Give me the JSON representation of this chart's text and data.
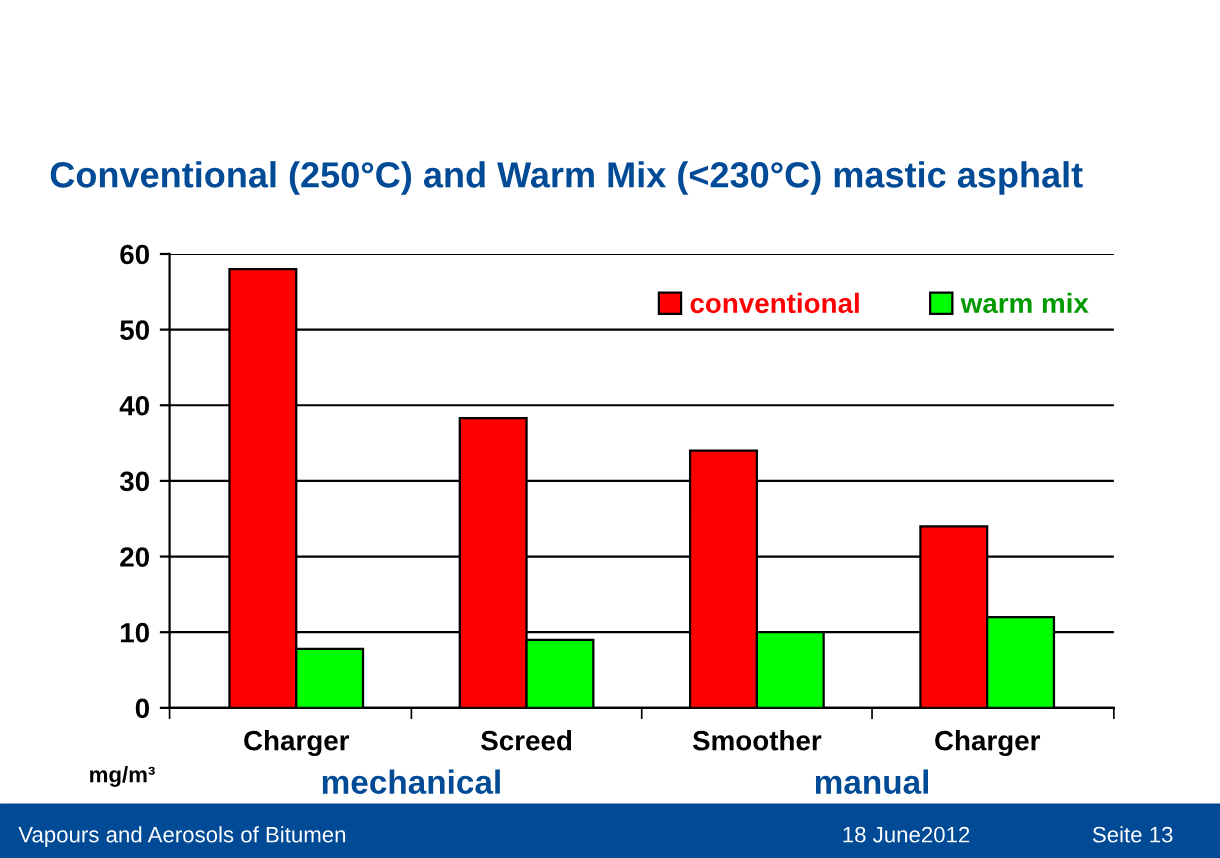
{
  "chart_data": {
    "type": "bar",
    "title": "Conventional (250°C) and Warm Mix (<230°C) mastic asphalt",
    "categories": [
      "Charger",
      "Screed",
      "Smoother",
      "Charger"
    ],
    "series": [
      {
        "name": "conventional",
        "color": "#ff0000",
        "values": [
          58,
          38.3,
          34,
          24
        ]
      },
      {
        "name": "warm mix",
        "color": "#00ff00",
        "values": [
          7.8,
          9,
          10,
          12
        ]
      }
    ],
    "ylim": [
      0,
      60
    ],
    "yticks": [
      0,
      10,
      20,
      30,
      40,
      50,
      60
    ],
    "grid": "y",
    "legend": "top right",
    "annotations": [
      "mg/m³",
      "mechanical",
      "manual",
      "Vapours and Aerosols of Bitumen",
      "18 June2012",
      "Seite 13"
    ]
  }
}
